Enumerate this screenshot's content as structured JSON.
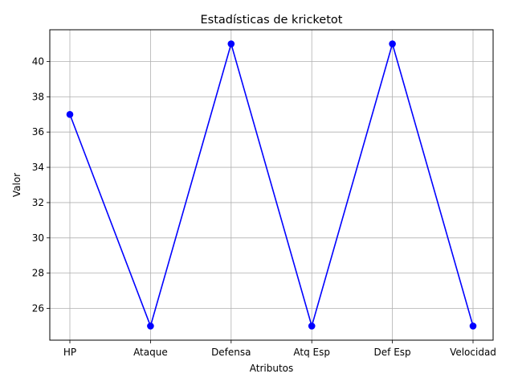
{
  "chart_data": {
    "type": "line",
    "title": "Estadísticas de kricketot",
    "xlabel": "Atributos",
    "ylabel": "Valor",
    "categories": [
      "HP",
      "Ataque",
      "Defensa",
      "Atq Esp",
      "Def Esp",
      "Velocidad"
    ],
    "series": [
      {
        "values": [
          37,
          25,
          41,
          25,
          41,
          25
        ],
        "color": "#0000ff",
        "marker": "circle"
      }
    ],
    "ylim": [
      24.2,
      41.8
    ],
    "yticks": [
      26,
      28,
      30,
      32,
      34,
      36,
      38,
      40
    ],
    "grid": true,
    "legend": "none"
  }
}
